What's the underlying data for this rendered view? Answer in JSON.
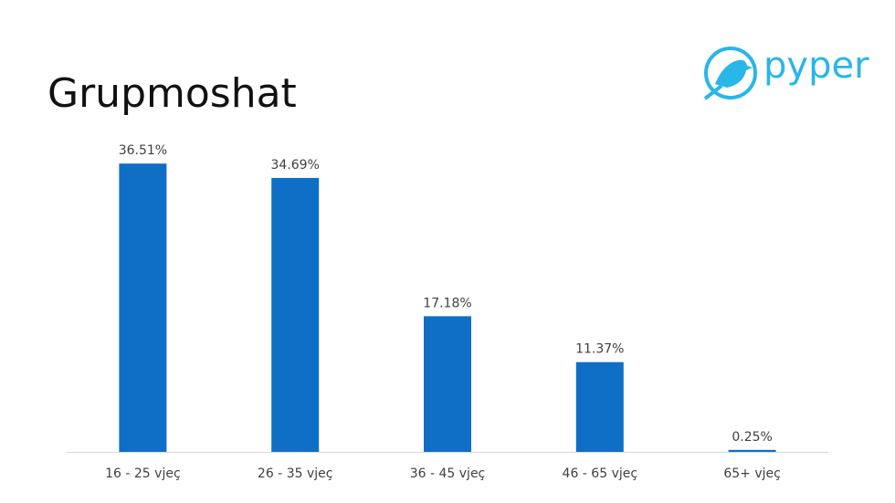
{
  "logo": "pyper",
  "chart_data": {
    "type": "bar",
    "title": "Grupmoshat",
    "categories": [
      "16 - 25 vjeç",
      "26 - 35 vjeç",
      "36 - 45 vjeç",
      "46 - 65 vjeç",
      "65+ vjeç"
    ],
    "values": [
      36.51,
      34.69,
      17.18,
      11.37,
      0.25
    ],
    "value_labels": [
      "36.51%",
      "34.69%",
      "17.18%",
      "11.37%",
      "0.25%"
    ],
    "color": "#0f6fc6",
    "ylim": [
      0,
      40
    ]
  }
}
